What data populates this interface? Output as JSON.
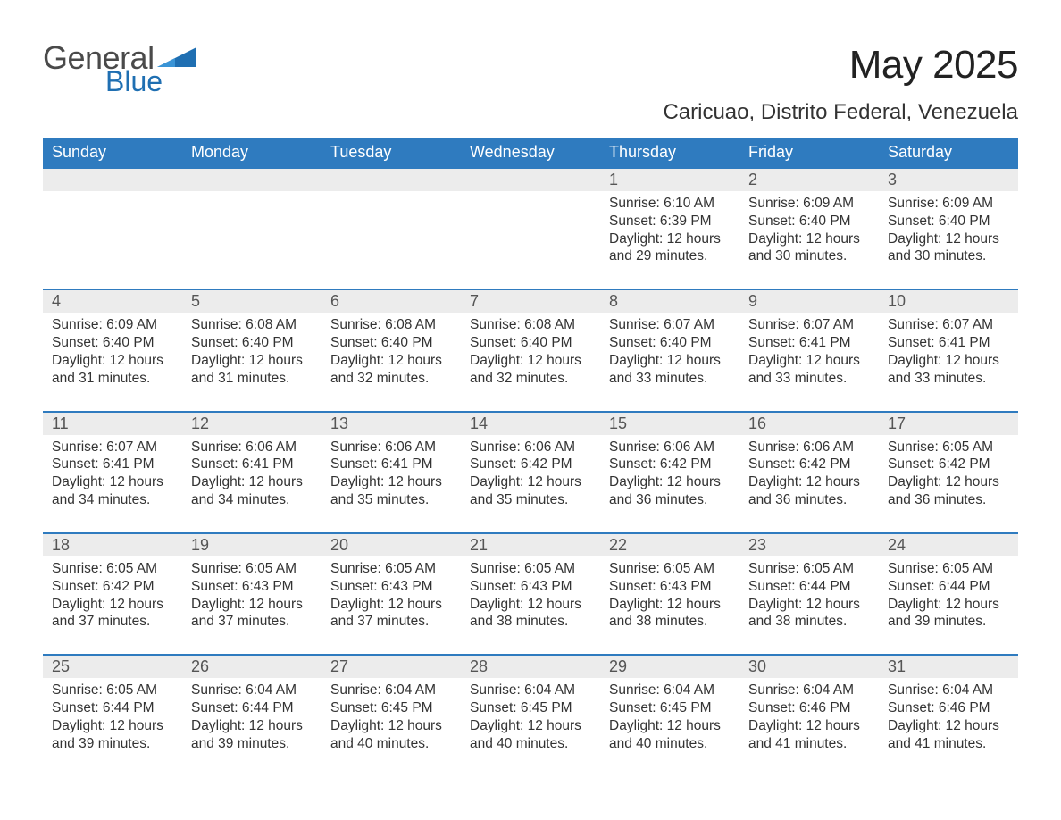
{
  "brand": {
    "general": "General",
    "blue": "Blue"
  },
  "title": "May 2025",
  "location": "Caricuao, Distrito Federal, Venezuela",
  "colors": {
    "header_bg": "#2f7bbf",
    "header_text": "#ffffff",
    "daynum_bg": "#ececec",
    "daynum_text": "#555555",
    "body_text": "#333333",
    "rule": "#2f7bbf",
    "logo_accent": "#1f6fb2",
    "logo_gray": "#4a4a4a",
    "background": "#ffffff"
  },
  "days_of_week": [
    "Sunday",
    "Monday",
    "Tuesday",
    "Wednesday",
    "Thursday",
    "Friday",
    "Saturday"
  ],
  "weeks": [
    [
      null,
      null,
      null,
      null,
      {
        "n": "1",
        "sunrise": "6:10 AM",
        "sunset": "6:39 PM",
        "daylight": "12 hours and 29 minutes."
      },
      {
        "n": "2",
        "sunrise": "6:09 AM",
        "sunset": "6:40 PM",
        "daylight": "12 hours and 30 minutes."
      },
      {
        "n": "3",
        "sunrise": "6:09 AM",
        "sunset": "6:40 PM",
        "daylight": "12 hours and 30 minutes."
      }
    ],
    [
      {
        "n": "4",
        "sunrise": "6:09 AM",
        "sunset": "6:40 PM",
        "daylight": "12 hours and 31 minutes."
      },
      {
        "n": "5",
        "sunrise": "6:08 AM",
        "sunset": "6:40 PM",
        "daylight": "12 hours and 31 minutes."
      },
      {
        "n": "6",
        "sunrise": "6:08 AM",
        "sunset": "6:40 PM",
        "daylight": "12 hours and 32 minutes."
      },
      {
        "n": "7",
        "sunrise": "6:08 AM",
        "sunset": "6:40 PM",
        "daylight": "12 hours and 32 minutes."
      },
      {
        "n": "8",
        "sunrise": "6:07 AM",
        "sunset": "6:40 PM",
        "daylight": "12 hours and 33 minutes."
      },
      {
        "n": "9",
        "sunrise": "6:07 AM",
        "sunset": "6:41 PM",
        "daylight": "12 hours and 33 minutes."
      },
      {
        "n": "10",
        "sunrise": "6:07 AM",
        "sunset": "6:41 PM",
        "daylight": "12 hours and 33 minutes."
      }
    ],
    [
      {
        "n": "11",
        "sunrise": "6:07 AM",
        "sunset": "6:41 PM",
        "daylight": "12 hours and 34 minutes."
      },
      {
        "n": "12",
        "sunrise": "6:06 AM",
        "sunset": "6:41 PM",
        "daylight": "12 hours and 34 minutes."
      },
      {
        "n": "13",
        "sunrise": "6:06 AM",
        "sunset": "6:41 PM",
        "daylight": "12 hours and 35 minutes."
      },
      {
        "n": "14",
        "sunrise": "6:06 AM",
        "sunset": "6:42 PM",
        "daylight": "12 hours and 35 minutes."
      },
      {
        "n": "15",
        "sunrise": "6:06 AM",
        "sunset": "6:42 PM",
        "daylight": "12 hours and 36 minutes."
      },
      {
        "n": "16",
        "sunrise": "6:06 AM",
        "sunset": "6:42 PM",
        "daylight": "12 hours and 36 minutes."
      },
      {
        "n": "17",
        "sunrise": "6:05 AM",
        "sunset": "6:42 PM",
        "daylight": "12 hours and 36 minutes."
      }
    ],
    [
      {
        "n": "18",
        "sunrise": "6:05 AM",
        "sunset": "6:42 PM",
        "daylight": "12 hours and 37 minutes."
      },
      {
        "n": "19",
        "sunrise": "6:05 AM",
        "sunset": "6:43 PM",
        "daylight": "12 hours and 37 minutes."
      },
      {
        "n": "20",
        "sunrise": "6:05 AM",
        "sunset": "6:43 PM",
        "daylight": "12 hours and 37 minutes."
      },
      {
        "n": "21",
        "sunrise": "6:05 AM",
        "sunset": "6:43 PM",
        "daylight": "12 hours and 38 minutes."
      },
      {
        "n": "22",
        "sunrise": "6:05 AM",
        "sunset": "6:43 PM",
        "daylight": "12 hours and 38 minutes."
      },
      {
        "n": "23",
        "sunrise": "6:05 AM",
        "sunset": "6:44 PM",
        "daylight": "12 hours and 38 minutes."
      },
      {
        "n": "24",
        "sunrise": "6:05 AM",
        "sunset": "6:44 PM",
        "daylight": "12 hours and 39 minutes."
      }
    ],
    [
      {
        "n": "25",
        "sunrise": "6:05 AM",
        "sunset": "6:44 PM",
        "daylight": "12 hours and 39 minutes."
      },
      {
        "n": "26",
        "sunrise": "6:04 AM",
        "sunset": "6:44 PM",
        "daylight": "12 hours and 39 minutes."
      },
      {
        "n": "27",
        "sunrise": "6:04 AM",
        "sunset": "6:45 PM",
        "daylight": "12 hours and 40 minutes."
      },
      {
        "n": "28",
        "sunrise": "6:04 AM",
        "sunset": "6:45 PM",
        "daylight": "12 hours and 40 minutes."
      },
      {
        "n": "29",
        "sunrise": "6:04 AM",
        "sunset": "6:45 PM",
        "daylight": "12 hours and 40 minutes."
      },
      {
        "n": "30",
        "sunrise": "6:04 AM",
        "sunset": "6:46 PM",
        "daylight": "12 hours and 41 minutes."
      },
      {
        "n": "31",
        "sunrise": "6:04 AM",
        "sunset": "6:46 PM",
        "daylight": "12 hours and 41 minutes."
      }
    ]
  ],
  "labels": {
    "sunrise_prefix": "Sunrise: ",
    "sunset_prefix": "Sunset: ",
    "daylight_prefix": "Daylight: "
  },
  "typography": {
    "title_fontsize": 44,
    "location_fontsize": 24,
    "dow_fontsize": 18,
    "daynum_fontsize": 18,
    "body_fontsize": 15.5
  }
}
